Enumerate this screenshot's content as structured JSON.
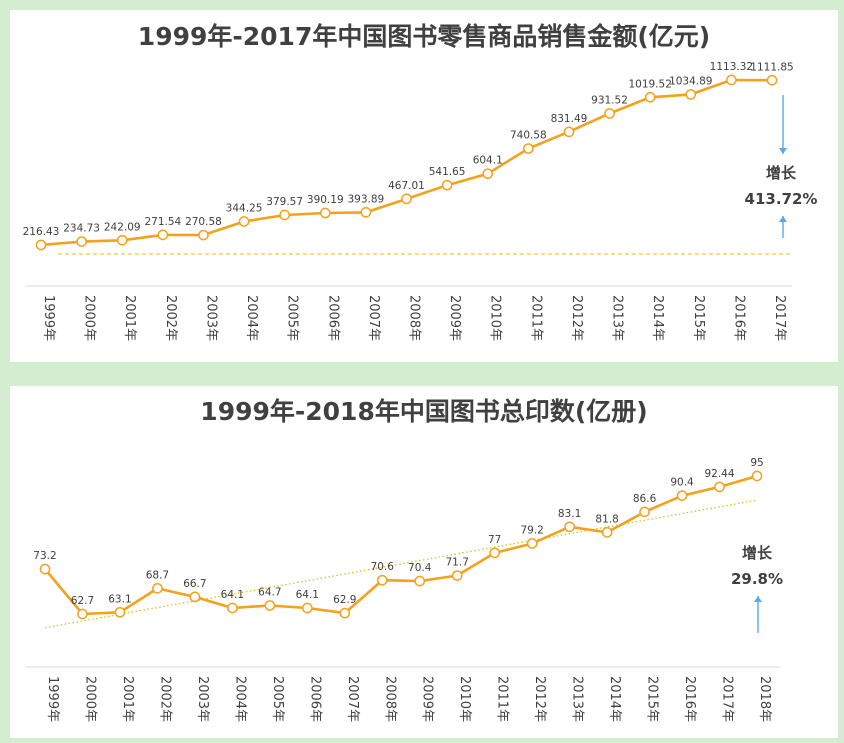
{
  "chart_data": [
    {
      "type": "line",
      "title": "1999年-2017年中国图书零售商品销售金额(亿元)",
      "categories": [
        "1999年",
        "2000年",
        "2001年",
        "2002年",
        "2003年",
        "2004年",
        "2005年",
        "2006年",
        "2007年",
        "2008年",
        "2009年",
        "2010年",
        "2011年",
        "2012年",
        "2013年",
        "2014年",
        "2015年",
        "2016年",
        "2017年"
      ],
      "series": [
        {
          "values": [
            216.43,
            234.73,
            242.09,
            271.54,
            270.58,
            344.25,
            379.57,
            390.19,
            393.89,
            467.01,
            541.65,
            604.1,
            740.58,
            831.49,
            931.52,
            1019.52,
            1034.89,
            1113.32,
            1111.85
          ]
        }
      ],
      "data_labels": [
        "216.43",
        "234.73",
        "242.09",
        "271.54",
        "270.58",
        "344.25",
        "379.57",
        "390.19",
        "393.89",
        "467.01",
        "541.65",
        "604.1",
        "740.58",
        "831.49",
        "931.52",
        "1019.52",
        "1034.89",
        "1113.32",
        "1111.85"
      ],
      "ylim": [
        140,
        1160
      ],
      "grid": false,
      "reference_line": "dashed horizontal baseline at the 1999 level",
      "annotation": {
        "line1": "增长",
        "line2": "413.72%"
      },
      "colors": {
        "line": "#f5a11c",
        "marker_fill": "#ffffff",
        "reference": "#f5c542",
        "arrow": "#5aa9e6"
      }
    },
    {
      "type": "line",
      "title": "1999年-2018年中国图书总印数(亿册)",
      "categories": [
        "1999年",
        "2000年",
        "2001年",
        "2002年",
        "2003年",
        "2004年",
        "2005年",
        "2006年",
        "2007年",
        "2008年",
        "2009年",
        "2010年",
        "2011年",
        "2012年",
        "2013年",
        "2014年",
        "2015年",
        "2016年",
        "2017年",
        "2018年"
      ],
      "series": [
        {
          "values": [
            73.2,
            62.7,
            63.1,
            68.7,
            66.7,
            64.1,
            64.7,
            64.1,
            62.9,
            70.6,
            70.4,
            71.7,
            77,
            79.2,
            83.1,
            81.8,
            86.6,
            90.4,
            92.44,
            95
          ]
        }
      ],
      "data_labels": [
        "73.2",
        "62.7",
        "63.1",
        "68.7",
        "66.7",
        "64.1",
        "64.7",
        "64.1",
        "62.9",
        "70.6",
        "70.4",
        "71.7",
        "77",
        "79.2",
        "83.1",
        "81.8",
        "86.6",
        "90.4",
        "92.44",
        "95"
      ],
      "ylim": [
        51,
        101
      ],
      "grid": false,
      "reference_line": "dotted linear trendline",
      "annotation": {
        "line1": "增长",
        "line2": "29.8%"
      },
      "colors": {
        "line": "#f5a11c",
        "marker_fill": "#ffffff",
        "reference": "#d4c21a",
        "arrow": "#5aa9e6"
      }
    }
  ]
}
